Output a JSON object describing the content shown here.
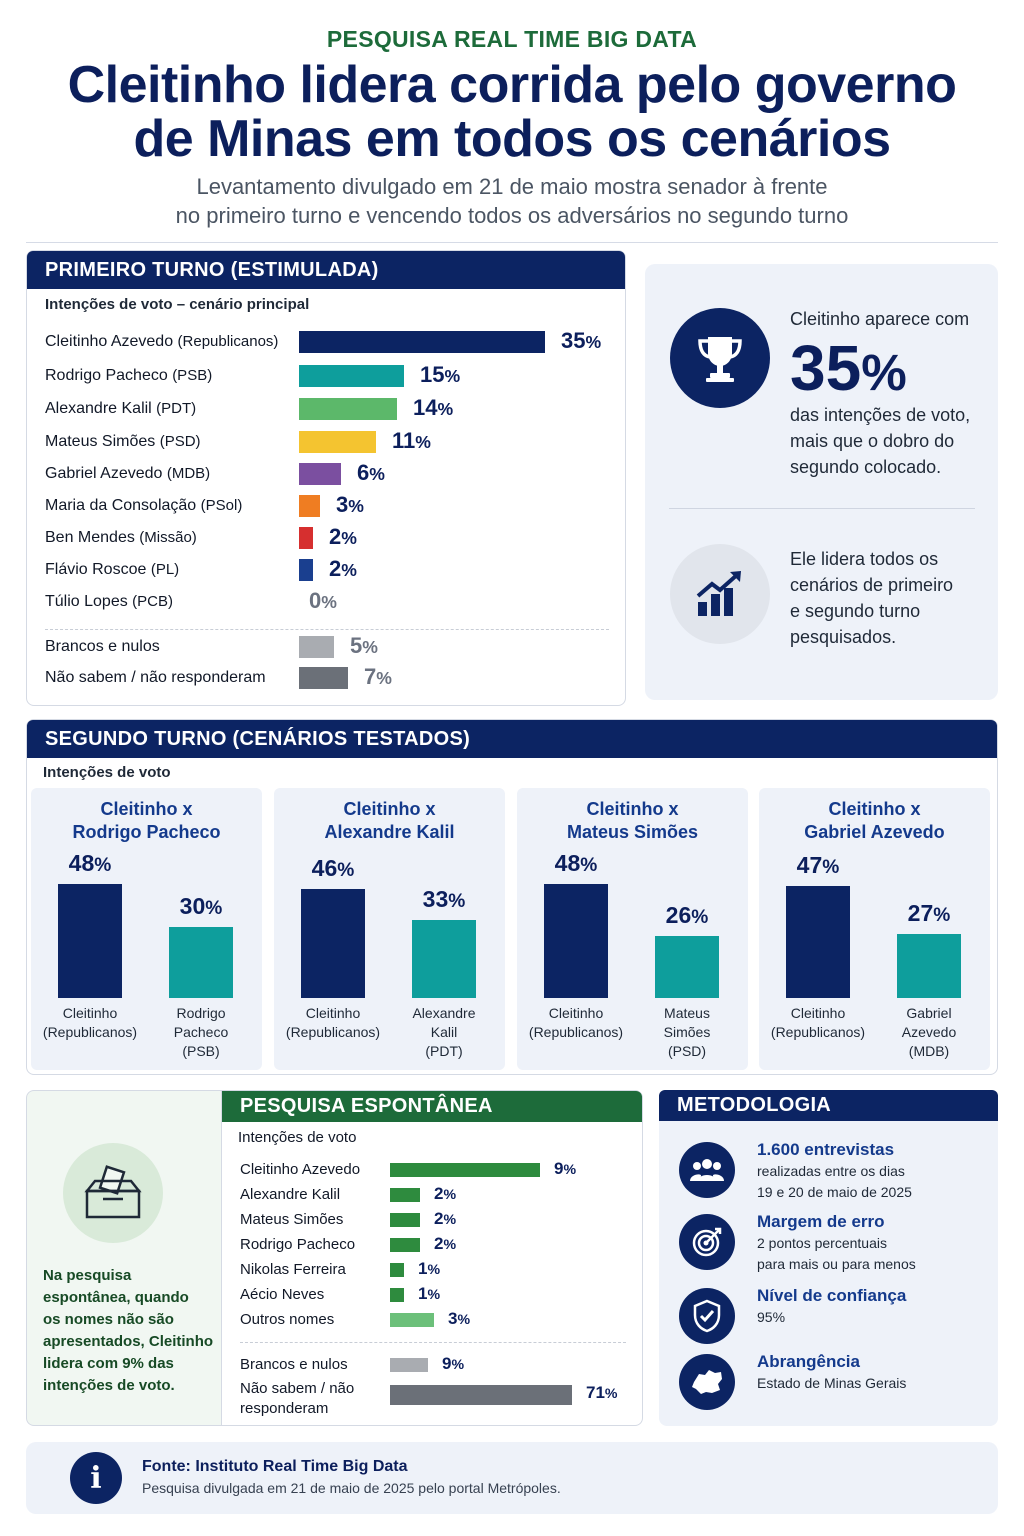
{
  "header": {
    "kicker": "PESQUISA REAL TIME BIG DATA",
    "headline_1": "Cleitinho lidera corrida pelo governo",
    "headline_2": "de Minas em todos os cenários",
    "subtitle_1": "Levantamento divulgado em 21 de maio mostra senador à frente",
    "subtitle_2": "no primeiro turno e vencendo todos os adversários no segundo turno"
  },
  "first_round": {
    "title": "PRIMEIRO TURNO (ESTIMULADA)",
    "subtitle": "Intenções de voto – cenário principal"
  },
  "highlight": {
    "line_1": "Cleitinho aparece com",
    "big_value": "35",
    "big_unit": "%",
    "line_2": "das intenções de voto,",
    "line_3": "mais que o dobro do",
    "line_4": "segundo colocado.",
    "lead_1": "Ele lidera todos os",
    "lead_2": "cenários de primeiro",
    "lead_3": "e segundo turno",
    "lead_4": "pesquisados.",
    "icon_trophy": "trophy-icon",
    "icon_chart": "growth-chart-icon"
  },
  "second_round": {
    "title": "SEGUNDO TURNO (CENÁRIOS TESTADOS)",
    "subtitle": "Intenções de voto"
  },
  "spontaneous": {
    "title": "PESQUISA ESPONTÂNEA",
    "subtitle": "Intenções de voto",
    "note_1": "Na pesquisa",
    "note_2": "espontânea, quando",
    "note_3": "os nomes não são",
    "note_4": "apresentados, Cleitinho",
    "note_5": "lidera com 9% das",
    "note_6": "intenções de voto.",
    "icon": "ballot-box-icon"
  },
  "methodology": {
    "title": "METODOLOGIA",
    "items": [
      {
        "title": "1.600 entrevistas",
        "text_1": "realizadas entre os dias",
        "text_2": "19 e 20 de maio de 2025",
        "icon": "people-icon"
      },
      {
        "title": "Margem de erro",
        "text_1": "2 pontos percentuais",
        "text_2": "para mais ou para menos",
        "icon": "target-icon"
      },
      {
        "title": "Nível de confiança",
        "text_1": "95%",
        "text_2": "",
        "icon": "shield-check-icon"
      },
      {
        "title": "Abrangência",
        "text_1": "Estado de Minas Gerais",
        "text_2": "",
        "icon": "map-minas-icon"
      }
    ]
  },
  "footer": {
    "source": "Fonte: Instituto Real Time Big Data",
    "note": "Pesquisa divulgada em 21 de maio de 2025 pelo portal Metrópoles.",
    "icon": "info-icon"
  },
  "colors": {
    "navy": "#0c2463",
    "teal": "#0e9e9c",
    "green": "#3aa655",
    "yellow": "#f4c430",
    "purple": "#7b4fa0",
    "orange": "#ef7d22",
    "red": "#d62f2f",
    "blue": "#1a3f8f",
    "gray_light": "#a9acb1",
    "gray_dark": "#6b7078",
    "spont_green": "#2e8b3e",
    "spont_light_green": "#6cc07a"
  },
  "chart_data": [
    {
      "type": "bar",
      "title": "PRIMEIRO TURNO (ESTIMULADA)",
      "subtitle": "Intenções de voto – cenário principal",
      "unit": "%",
      "categories": [
        {
          "name": "Cleitinho Azevedo",
          "party": "(Republicanos)"
        },
        {
          "name": "Rodrigo Pacheco",
          "party": "(PSB)"
        },
        {
          "name": "Alexandre Kalil",
          "party": "(PDT)"
        },
        {
          "name": "Mateus Simões",
          "party": "(PSD)"
        },
        {
          "name": "Gabriel Azevedo",
          "party": "(MDB)"
        },
        {
          "name": "Maria da Consolação",
          "party": "(PSol)"
        },
        {
          "name": "Ben Mendes",
          "party": "(Missão)"
        },
        {
          "name": "Flávio Roscoe",
          "party": "(PL)"
        },
        {
          "name": "Túlio Lopes",
          "party": "(PCB)"
        },
        {
          "name": "Brancos e nulos",
          "party": ""
        },
        {
          "name": "Não sabem / não responderam",
          "party": ""
        }
      ],
      "values": [
        35,
        15,
        14,
        11,
        6,
        3,
        2,
        2,
        0,
        5,
        7
      ],
      "bar_colors": [
        "#0c2463",
        "#0e9e9c",
        "#5cb86a",
        "#f4c430",
        "#7b4fa0",
        "#ef7d22",
        "#d62f2f",
        "#1a3f8f",
        "#9ca3af",
        "#a9acb1",
        "#6b7078"
      ]
    },
    {
      "type": "bar",
      "title": "SEGUNDO TURNO (CENÁRIOS TESTADOS)",
      "subtitle": "Intenções de voto",
      "unit": "%",
      "scenarios": [
        {
          "title_1": "Cleitinho x",
          "title_2": "Rodrigo Pacheco",
          "a": {
            "label_1": "Cleitinho",
            "label_2": "(Republicanos)",
            "label_3": "",
            "value": 48
          },
          "b": {
            "label_1": "Rodrigo",
            "label_2": "Pacheco",
            "label_3": "(PSB)",
            "value": 30
          }
        },
        {
          "title_1": "Cleitinho x",
          "title_2": "Alexandre Kalil",
          "a": {
            "label_1": "Cleitinho",
            "label_2": "(Republicanos)",
            "label_3": "",
            "value": 46
          },
          "b": {
            "label_1": "Alexandre",
            "label_2": "Kalil",
            "label_3": "(PDT)",
            "value": 33
          }
        },
        {
          "title_1": "Cleitinho x",
          "title_2": "Mateus Simões",
          "a": {
            "label_1": "Cleitinho",
            "label_2": "(Republicanos)",
            "label_3": "",
            "value": 48
          },
          "b": {
            "label_1": "Mateus",
            "label_2": "Simões",
            "label_3": "(PSD)",
            "value": 26
          }
        },
        {
          "title_1": "Cleitinho x",
          "title_2": "Gabriel Azevedo",
          "a": {
            "label_1": "Cleitinho",
            "label_2": "(Republicanos)",
            "label_3": "",
            "value": 47
          },
          "b": {
            "label_1": "Gabriel",
            "label_2": "Azevedo",
            "label_3": "(MDB)",
            "value": 27
          }
        }
      ]
    },
    {
      "type": "bar",
      "title": "PESQUISA ESPONTÂNEA",
      "subtitle": "Intenções de voto",
      "unit": "%",
      "categories": [
        "Cleitinho Azevedo",
        "Alexandre Kalil",
        "Mateus Simões",
        "Rodrigo Pacheco",
        "Nikolas Ferreira",
        "Aécio Neves",
        "Outros nomes",
        "Brancos e nulos",
        "Não sabem / não responderam"
      ],
      "values": [
        9,
        2,
        2,
        2,
        1,
        1,
        3,
        9,
        71
      ],
      "bar_colors": [
        "#2e8b3e",
        "#2e8b3e",
        "#2e8b3e",
        "#2e8b3e",
        "#2e8b3e",
        "#2e8b3e",
        "#6cc07a",
        "#a9acb1",
        "#6b7078"
      ]
    }
  ]
}
